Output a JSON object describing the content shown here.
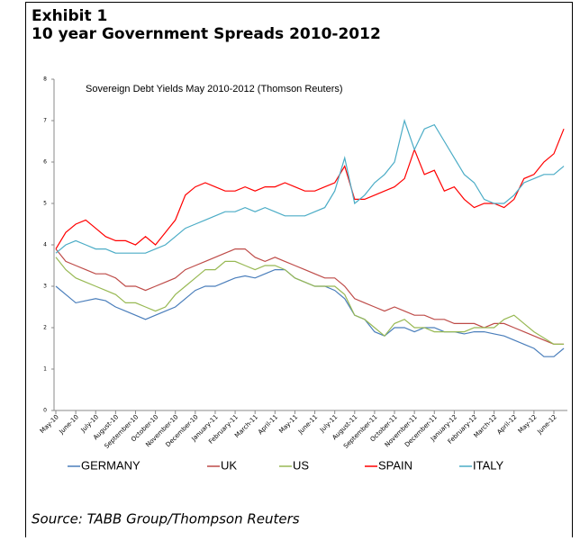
{
  "chart_data": {
    "type": "line",
    "exhibit": "Exhibit 1",
    "title": "10 year Government Spreads 2010-2012",
    "subtitle": "Sovereign Debt Yields May 2010-2012 (Thomson Reuters)",
    "source": "Source: TABB Group/Thompson Reuters",
    "categories": [
      "May-10",
      null,
      "June-10",
      null,
      "July-10",
      null,
      "August-10",
      null,
      "September-10",
      null,
      "October-10",
      null,
      "November-10",
      null,
      "December-10",
      null,
      "January-11",
      null,
      "February-11",
      null,
      "March-11",
      null,
      "April-11",
      null,
      "May-11",
      null,
      "June-11",
      null,
      "July-11",
      null,
      "August-11",
      null,
      "September-11",
      null,
      "October-11",
      null,
      "November-11",
      null,
      "December-11",
      null,
      "January-12",
      null,
      "February-12",
      null,
      "March-12",
      null,
      "April-12",
      null,
      "May-12",
      null,
      "June-12",
      null
    ],
    "series": [
      {
        "name": "GERMANY",
        "color": "#4a7ebb",
        "values": [
          3.0,
          2.8,
          2.6,
          2.65,
          2.7,
          2.65,
          2.5,
          2.4,
          2.3,
          2.2,
          2.3,
          2.4,
          2.5,
          2.7,
          2.9,
          3.0,
          3.0,
          3.1,
          3.2,
          3.25,
          3.2,
          3.3,
          3.4,
          3.4,
          3.2,
          3.1,
          3.0,
          3.0,
          2.9,
          2.7,
          2.3,
          2.2,
          1.9,
          1.8,
          2.0,
          2.0,
          1.9,
          2.0,
          2.0,
          1.9,
          1.9,
          1.85,
          1.9,
          1.9,
          1.85,
          1.8,
          1.7,
          1.6,
          1.5,
          1.3,
          1.3,
          1.5
        ]
      },
      {
        "name": "UK",
        "color": "#be4b48",
        "values": [
          3.9,
          3.6,
          3.5,
          3.4,
          3.3,
          3.3,
          3.2,
          3.0,
          3.0,
          2.9,
          3.0,
          3.1,
          3.2,
          3.4,
          3.5,
          3.6,
          3.7,
          3.8,
          3.9,
          3.9,
          3.7,
          3.6,
          3.7,
          3.6,
          3.5,
          3.4,
          3.3,
          3.2,
          3.2,
          3.0,
          2.7,
          2.6,
          2.5,
          2.4,
          2.5,
          2.4,
          2.3,
          2.3,
          2.2,
          2.2,
          2.1,
          2.1,
          2.1,
          2.0,
          2.1,
          2.1,
          2.0,
          1.9,
          1.8,
          1.7,
          1.6,
          1.6
        ]
      },
      {
        "name": "US",
        "color": "#98b954",
        "values": [
          3.7,
          3.4,
          3.2,
          3.1,
          3.0,
          2.9,
          2.8,
          2.6,
          2.6,
          2.5,
          2.4,
          2.5,
          2.8,
          3.0,
          3.2,
          3.4,
          3.4,
          3.6,
          3.6,
          3.5,
          3.4,
          3.5,
          3.5,
          3.4,
          3.2,
          3.1,
          3.0,
          3.0,
          3.0,
          2.8,
          2.3,
          2.2,
          2.0,
          1.8,
          2.1,
          2.2,
          2.0,
          2.0,
          1.9,
          1.9,
          1.9,
          1.9,
          2.0,
          2.0,
          2.0,
          2.2,
          2.3,
          2.1,
          1.9,
          1.75,
          1.6,
          1.6
        ]
      },
      {
        "name": "SPAIN",
        "color": "#ff0000",
        "values": [
          3.9,
          4.3,
          4.5,
          4.6,
          4.4,
          4.2,
          4.1,
          4.1,
          4.0,
          4.2,
          4.0,
          4.3,
          4.6,
          5.2,
          5.4,
          5.5,
          5.4,
          5.3,
          5.3,
          5.4,
          5.3,
          5.4,
          5.4,
          5.5,
          5.4,
          5.3,
          5.3,
          5.4,
          5.5,
          5.9,
          5.1,
          5.1,
          5.2,
          5.3,
          5.4,
          5.6,
          6.3,
          5.7,
          5.8,
          5.3,
          5.4,
          5.1,
          4.9,
          5.0,
          5.0,
          4.9,
          5.1,
          5.6,
          5.7,
          6.0,
          6.2,
          6.8
        ]
      },
      {
        "name": "ITALY",
        "color": "#4bacc6",
        "values": [
          3.8,
          4.0,
          4.1,
          4.0,
          3.9,
          3.9,
          3.8,
          3.8,
          3.8,
          3.8,
          3.9,
          4.0,
          4.2,
          4.4,
          4.5,
          4.6,
          4.7,
          4.8,
          4.8,
          4.9,
          4.8,
          4.9,
          4.8,
          4.7,
          4.7,
          4.7,
          4.8,
          4.9,
          5.3,
          6.1,
          5.0,
          5.2,
          5.5,
          5.7,
          6.0,
          7.0,
          6.3,
          6.8,
          6.9,
          6.5,
          6.1,
          5.7,
          5.5,
          5.1,
          5.0,
          5.0,
          5.2,
          5.5,
          5.6,
          5.7,
          5.7,
          5.9
        ]
      }
    ],
    "ylim": [
      0,
      8
    ],
    "yticks": [
      0,
      1,
      2,
      3,
      4,
      5,
      6,
      7,
      8
    ],
    "legend": "bottom"
  }
}
